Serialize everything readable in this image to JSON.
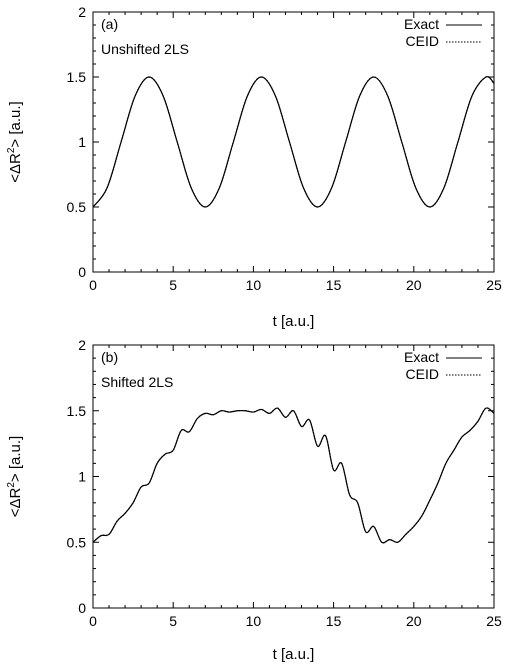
{
  "chart_data": [
    {
      "type": "line",
      "panel_label": "(a)",
      "annotation": "Unshifted 2LS",
      "xlabel": "t [a.u.]",
      "ylabel": "<ΔR2> [a.u.]",
      "ylabel_parts": {
        "before": "<ΔR",
        "sup": "2",
        "after": "> [a.u.]"
      },
      "xlim": [
        0,
        25
      ],
      "ylim": [
        0,
        2
      ],
      "xticks": [
        0,
        5,
        10,
        15,
        20,
        25
      ],
      "xtick_labels": [
        "0",
        "5",
        "10",
        "15",
        "20",
        "25"
      ],
      "yticks": [
        0,
        0.5,
        1,
        1.5,
        2
      ],
      "ytick_labels": [
        "0",
        "0.5",
        "1",
        "1.5",
        "2"
      ],
      "legend": "top-right",
      "grid": false,
      "series": [
        {
          "name": "Exact",
          "style": "solid",
          "x": [
            0,
            0.875,
            1.75,
            2.625,
            3.5,
            4.375,
            5.25,
            6.125,
            7.0,
            7.875,
            8.75,
            9.625,
            10.5,
            11.375,
            12.25,
            13.125,
            14.0,
            14.875,
            15.75,
            16.625,
            17.5,
            18.375,
            19.25,
            20.125,
            21.0,
            21.875,
            22.75,
            23.625,
            24.5,
            25.0
          ],
          "y": [
            0.5,
            0.646,
            1.0,
            1.354,
            1.5,
            1.354,
            1.0,
            0.646,
            0.5,
            0.646,
            1.0,
            1.354,
            1.5,
            1.354,
            1.0,
            0.646,
            0.5,
            0.646,
            1.0,
            1.354,
            1.5,
            1.354,
            1.0,
            0.646,
            0.5,
            0.646,
            1.0,
            1.354,
            1.5,
            1.45
          ]
        },
        {
          "name": "CEID",
          "style": "dotted",
          "x": [
            0,
            0.875,
            1.75,
            2.625,
            3.5,
            4.375,
            5.25,
            6.125,
            7.0,
            7.875,
            8.75,
            9.625,
            10.5,
            11.375,
            12.25,
            13.125,
            14.0,
            14.875,
            15.75,
            16.625,
            17.5,
            18.375,
            19.25,
            20.125,
            21.0,
            21.875,
            22.75,
            23.625,
            24.5,
            25.0
          ],
          "y": [
            0.5,
            0.646,
            1.0,
            1.354,
            1.5,
            1.354,
            1.0,
            0.646,
            0.5,
            0.646,
            1.0,
            1.354,
            1.5,
            1.354,
            1.0,
            0.646,
            0.5,
            0.646,
            1.0,
            1.354,
            1.5,
            1.354,
            1.0,
            0.646,
            0.5,
            0.646,
            1.0,
            1.354,
            1.5,
            1.45
          ]
        }
      ]
    },
    {
      "type": "line",
      "panel_label": "(b)",
      "annotation": "Shifted 2LS",
      "xlabel": "t [a.u.]",
      "ylabel": "<ΔR2> [a.u.]",
      "ylabel_parts": {
        "before": "<ΔR",
        "sup": "2",
        "after": "> [a.u.]"
      },
      "xlim": [
        0,
        25
      ],
      "ylim": [
        0,
        2
      ],
      "xticks": [
        0,
        5,
        10,
        15,
        20,
        25
      ],
      "xtick_labels": [
        "0",
        "5",
        "10",
        "15",
        "20",
        "25"
      ],
      "yticks": [
        0,
        0.5,
        1,
        1.5,
        2
      ],
      "ytick_labels": [
        "0",
        "0.5",
        "1",
        "1.5",
        "2"
      ],
      "legend": "top-right",
      "grid": false,
      "series": [
        {
          "name": "Exact",
          "style": "solid",
          "x": [
            0,
            0.5,
            1.0,
            1.5,
            2.0,
            2.5,
            3.0,
            3.5,
            4.0,
            4.5,
            5.0,
            5.5,
            6.0,
            6.5,
            7.0,
            7.5,
            8.0,
            8.5,
            9.0,
            9.5,
            10.0,
            10.5,
            11.0,
            11.5,
            12.0,
            12.5,
            13.0,
            13.5,
            14.0,
            14.5,
            15.0,
            15.5,
            16.0,
            16.5,
            17.0,
            17.5,
            18.0,
            18.5,
            19.0,
            19.5,
            20.0,
            20.5,
            21.0,
            21.5,
            22.0,
            22.5,
            23.0,
            23.5,
            24.0,
            24.5,
            25.0
          ],
          "y": [
            0.5,
            0.55,
            0.56,
            0.66,
            0.72,
            0.8,
            0.92,
            0.95,
            1.1,
            1.17,
            1.2,
            1.35,
            1.34,
            1.44,
            1.48,
            1.47,
            1.5,
            1.49,
            1.5,
            1.5,
            1.49,
            1.51,
            1.48,
            1.52,
            1.45,
            1.5,
            1.38,
            1.43,
            1.23,
            1.31,
            1.05,
            1.1,
            0.86,
            0.8,
            0.58,
            0.62,
            0.5,
            0.52,
            0.5,
            0.56,
            0.62,
            0.7,
            0.82,
            0.95,
            1.1,
            1.2,
            1.3,
            1.35,
            1.42,
            1.52,
            1.48
          ]
        },
        {
          "name": "CEID",
          "style": "dotted",
          "x": [
            0,
            0.5,
            1.0,
            1.5,
            2.0,
            2.5,
            3.0,
            3.5,
            4.0,
            4.5,
            5.0,
            5.5,
            6.0,
            6.5,
            7.0,
            7.5,
            8.0,
            8.5,
            9.0,
            9.5,
            10.0,
            10.5,
            11.0,
            11.5,
            12.0,
            12.5,
            13.0,
            13.5,
            14.0,
            14.5,
            15.0,
            15.5,
            16.0,
            16.5,
            17.0,
            17.5,
            18.0,
            18.5,
            19.0,
            19.5,
            20.0,
            20.5,
            21.0,
            21.5,
            22.0,
            22.5,
            23.0,
            23.5,
            24.0,
            24.5,
            25.0
          ],
          "y": [
            0.5,
            0.55,
            0.56,
            0.66,
            0.72,
            0.8,
            0.92,
            0.95,
            1.1,
            1.17,
            1.2,
            1.35,
            1.34,
            1.44,
            1.48,
            1.47,
            1.5,
            1.49,
            1.5,
            1.5,
            1.49,
            1.51,
            1.48,
            1.52,
            1.45,
            1.5,
            1.38,
            1.43,
            1.23,
            1.31,
            1.05,
            1.1,
            0.86,
            0.8,
            0.58,
            0.62,
            0.5,
            0.52,
            0.5,
            0.56,
            0.62,
            0.7,
            0.82,
            0.95,
            1.1,
            1.2,
            1.3,
            1.35,
            1.42,
            1.52,
            1.48
          ]
        }
      ]
    }
  ]
}
